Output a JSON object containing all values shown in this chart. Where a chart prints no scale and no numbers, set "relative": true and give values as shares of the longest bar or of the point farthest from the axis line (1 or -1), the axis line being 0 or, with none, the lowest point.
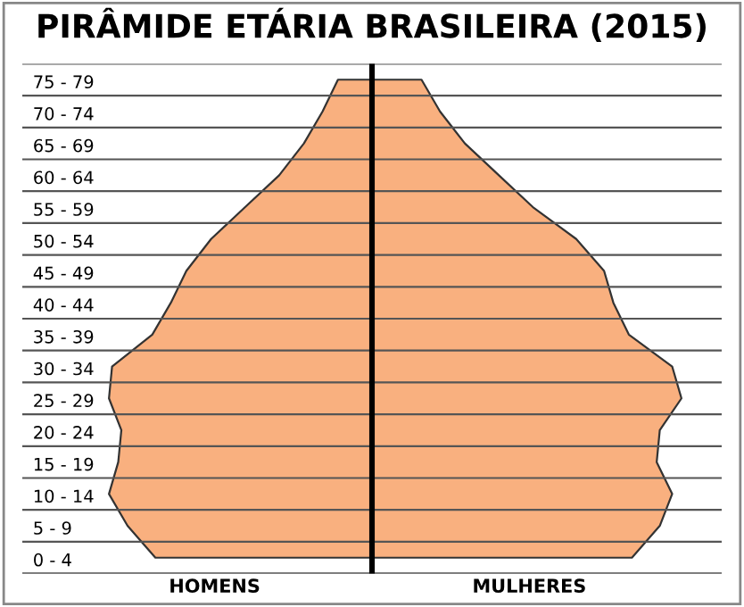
{
  "chart_data": {
    "type": "area",
    "orientation": "horizontal",
    "relative": true,
    "title": "PIRÂMIDE ETÁRIA BRASILEIRA (2015)",
    "categories": [
      "75 - 79",
      "70 - 74",
      "65 - 69",
      "60 - 64",
      "55 - 59",
      "50 - 54",
      "45 - 49",
      "40 - 44",
      "35 - 39",
      "30 - 34",
      "25 - 29",
      "20 - 24",
      "15 - 19",
      "10 - 14",
      "5 - 9",
      "0 - 4"
    ],
    "series": [
      {
        "name": "HOMENS",
        "color": "#f9b07f",
        "values": [
          -0.11,
          -0.16,
          -0.22,
          -0.3,
          -0.41,
          -0.52,
          -0.6,
          -0.65,
          -0.71,
          -0.84,
          -0.85,
          -0.81,
          -0.82,
          -0.85,
          -0.79,
          -0.7
        ]
      },
      {
        "name": "MULHERES",
        "color": "#f9b07f",
        "values": [
          0.16,
          0.22,
          0.3,
          0.41,
          0.52,
          0.66,
          0.75,
          0.78,
          0.83,
          0.97,
          1.0,
          0.93,
          0.92,
          0.97,
          0.93,
          0.84
        ]
      }
    ],
    "grid": "y",
    "legend": false
  }
}
